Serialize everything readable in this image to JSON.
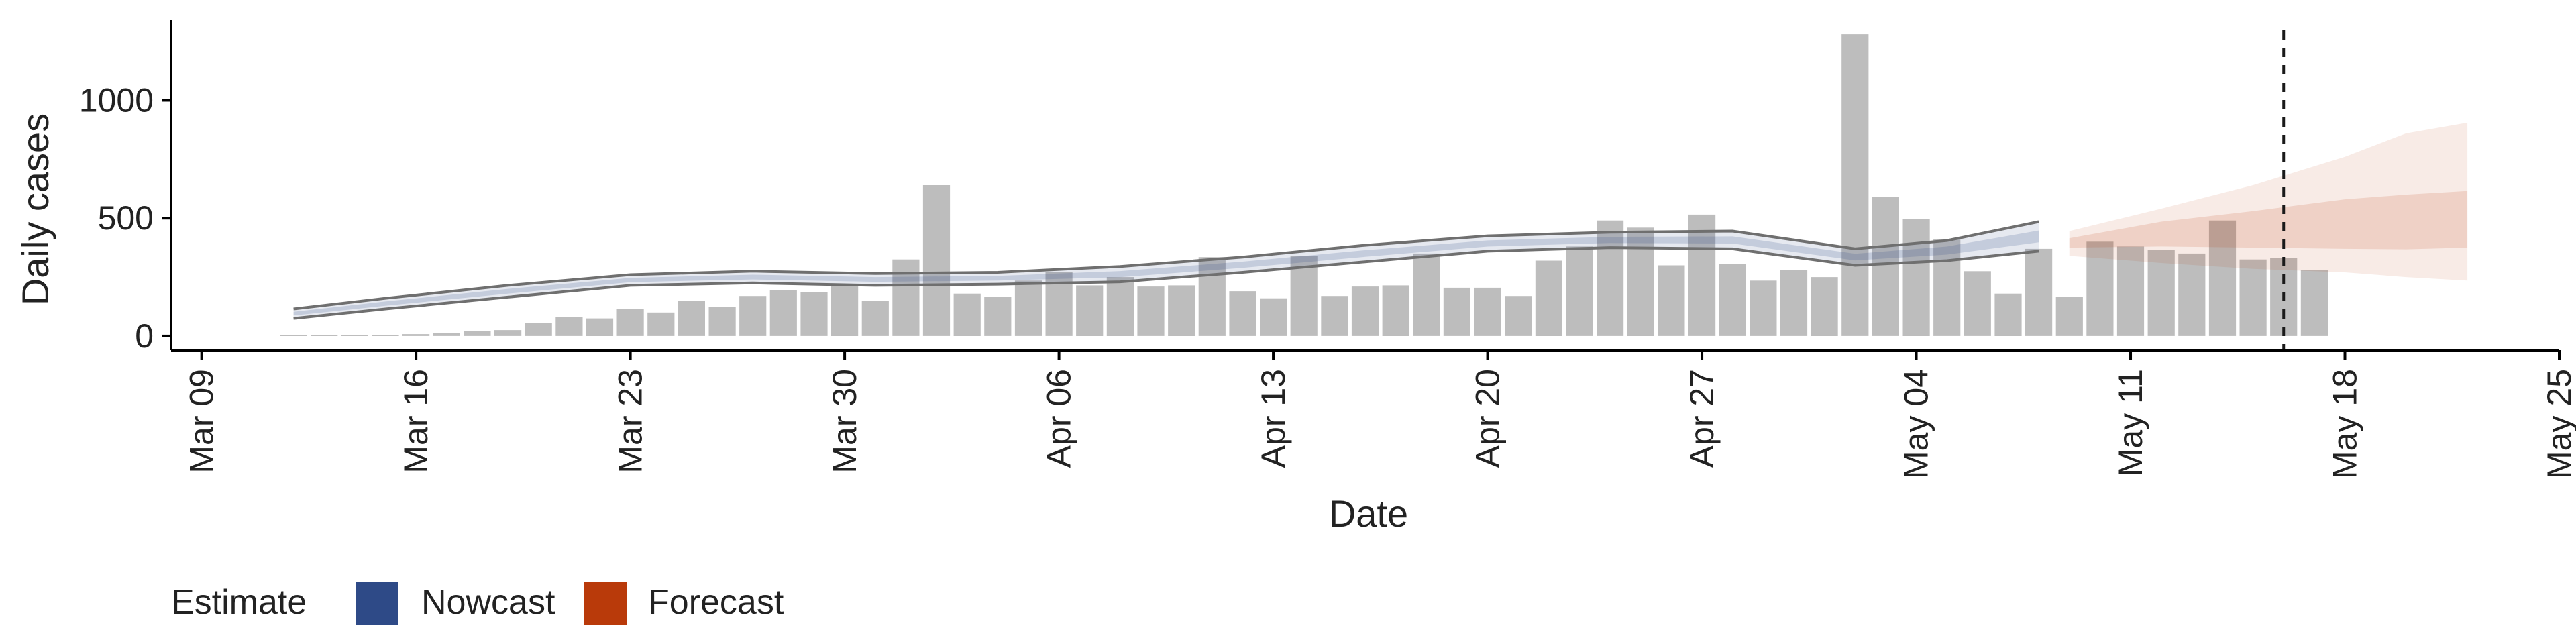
{
  "chart_data": {
    "type": "bar",
    "xlabel": "Date",
    "ylabel": "Daily cases",
    "x_ticks": [
      "Mar 09",
      "Mar 16",
      "Mar 23",
      "Mar 30",
      "Apr 06",
      "Apr 13",
      "Apr 20",
      "Apr 27",
      "May 04",
      "May 11",
      "May 18",
      "May 25"
    ],
    "y_ticks": [
      0,
      500,
      1000
    ],
    "ylim": [
      -60,
      1340
    ],
    "xlim": [
      "2020-03-08",
      "2020-05-25"
    ],
    "grid": false,
    "legend": {
      "title": "Estimate",
      "position": "bottom-left",
      "items": [
        {
          "label": "Nowcast",
          "color": "#2E4A87"
        },
        {
          "label": "Forecast",
          "color": "#B93A0A"
        }
      ]
    },
    "colors": {
      "bars": "#BDBDBD",
      "nowcast": "#2E4A87",
      "forecast": "#B93A0A",
      "estimate_line": "#6F6F6F",
      "cutoff_line": "#1A1A1A"
    },
    "bars": {
      "start_date": "2020-03-12",
      "values": [
        5,
        5,
        5,
        5,
        8,
        12,
        20,
        25,
        55,
        80,
        75,
        115,
        100,
        150,
        125,
        170,
        195,
        185,
        215,
        150,
        325,
        640,
        180,
        165,
        235,
        270,
        215,
        250,
        210,
        215,
        335,
        190,
        160,
        340,
        170,
        210,
        215,
        350,
        205,
        205,
        170,
        320,
        380,
        490,
        460,
        300,
        515,
        305,
        235,
        280,
        250,
        1280,
        590,
        495,
        410,
        275,
        180,
        370,
        165,
        400,
        380,
        365,
        350,
        490,
        325,
        330,
        280
      ]
    },
    "nowcast_band": {
      "dates": [
        "2020-03-12",
        "2020-03-15",
        "2020-03-19",
        "2020-03-23",
        "2020-03-27",
        "2020-03-31",
        "2020-04-04",
        "2020-04-08",
        "2020-04-12",
        "2020-04-16",
        "2020-04-20",
        "2020-04-24",
        "2020-04-28",
        "2020-05-02",
        "2020-05-05",
        "2020-05-08"
      ],
      "lower": [
        75,
        115,
        165,
        215,
        225,
        215,
        220,
        230,
        270,
        315,
        360,
        375,
        370,
        300,
        320,
        360
      ],
      "upper": [
        115,
        160,
        215,
        260,
        275,
        265,
        270,
        295,
        335,
        385,
        425,
        440,
        445,
        370,
        405,
        485
      ]
    },
    "forecast_band": {
      "dates": [
        "2020-05-09",
        "2020-05-12",
        "2020-05-15",
        "2020-05-18",
        "2020-05-20",
        "2020-05-22"
      ],
      "outer_lower": [
        340,
        310,
        285,
        270,
        250,
        235
      ],
      "outer_upper": [
        445,
        540,
        640,
        760,
        860,
        905
      ],
      "inner_lower": [
        375,
        380,
        375,
        370,
        368,
        375
      ],
      "inner_upper": [
        415,
        485,
        530,
        580,
        600,
        615
      ]
    },
    "cutoff_date": "2020-05-16"
  }
}
